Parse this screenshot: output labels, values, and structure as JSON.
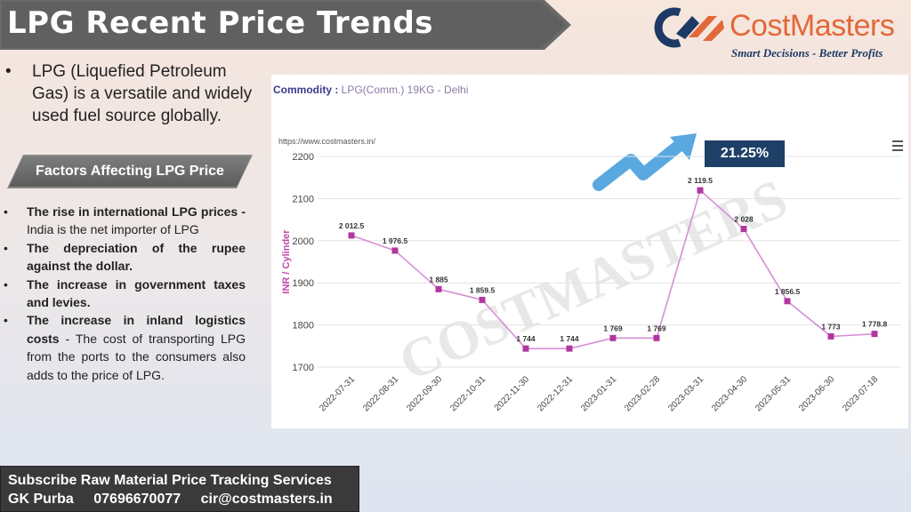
{
  "header": {
    "title": "LPG Recent Price Trends"
  },
  "logo": {
    "name": "CostMasters",
    "tagline": "Smart Decisions - Better Profits",
    "icon": "costmasters-logo-icon",
    "colors": {
      "blue": "#1d3a66",
      "orange": "#e2683a"
    }
  },
  "intro": {
    "bullet": "•",
    "text": "LPG (Liquefied Petroleum Gas) is a versatile and widely used fuel source globally."
  },
  "factors": {
    "heading": "Factors Affecting LPG Price",
    "items": [
      {
        "bold": "The rise in international LPG prices -",
        "text": " India is the net importer of LPG"
      },
      {
        "bold": "The depreciation of the rupee against the dollar.",
        "text": ""
      },
      {
        "bold": "The increase in government taxes and levies.",
        "text": ""
      },
      {
        "bold": "The increase in inland logistics costs",
        "text": " - The cost of transporting LPG from the ports to the consumers also adds to the price of LPG."
      }
    ]
  },
  "chart_header": {
    "commodity_label": "Commodity : ",
    "commodity_value": "LPG(Comm.) 19KG - Delhi",
    "url": "https://www.costmasters.in/",
    "change_badge": "21.25%",
    "watermark": "COSTMASTERS"
  },
  "chart_data": {
    "type": "line",
    "ylabel": "INR / Cylinder",
    "xlabel": "",
    "ylim": [
      1700,
      2200
    ],
    "yticks": [
      1700,
      1800,
      1900,
      2000,
      2100,
      2200
    ],
    "grid": true,
    "line_color": "#d690d6",
    "marker_color": "#b0379f",
    "x": [
      "2022-07-31",
      "2022-08-31",
      "2022-09-30",
      "2022-10-31",
      "2022-11-30",
      "2022-12-31",
      "2023-01-31",
      "2023-02-28",
      "2023-03-31",
      "2023-04-30",
      "2023-05-31",
      "2023-06-30",
      "2023-07-18"
    ],
    "values": [
      2012.5,
      1976.5,
      1885,
      1859.5,
      1744,
      1744,
      1769,
      1769,
      2119.5,
      2028,
      1856.5,
      1773,
      1778.8
    ],
    "data_labels": [
      "2 012.5",
      "1 976.5",
      "1 885",
      "1 859.5",
      "1 744",
      "1 744",
      "1 769",
      "1 769",
      "2 119.5",
      "2 028",
      "1 856.5",
      "1 773",
      "1 778.8"
    ]
  },
  "footer": {
    "line1": "Subscribe Raw Material Price Tracking Services",
    "name": "GK Purba",
    "phone": "07696670077",
    "email": "cir@costmasters.in"
  }
}
